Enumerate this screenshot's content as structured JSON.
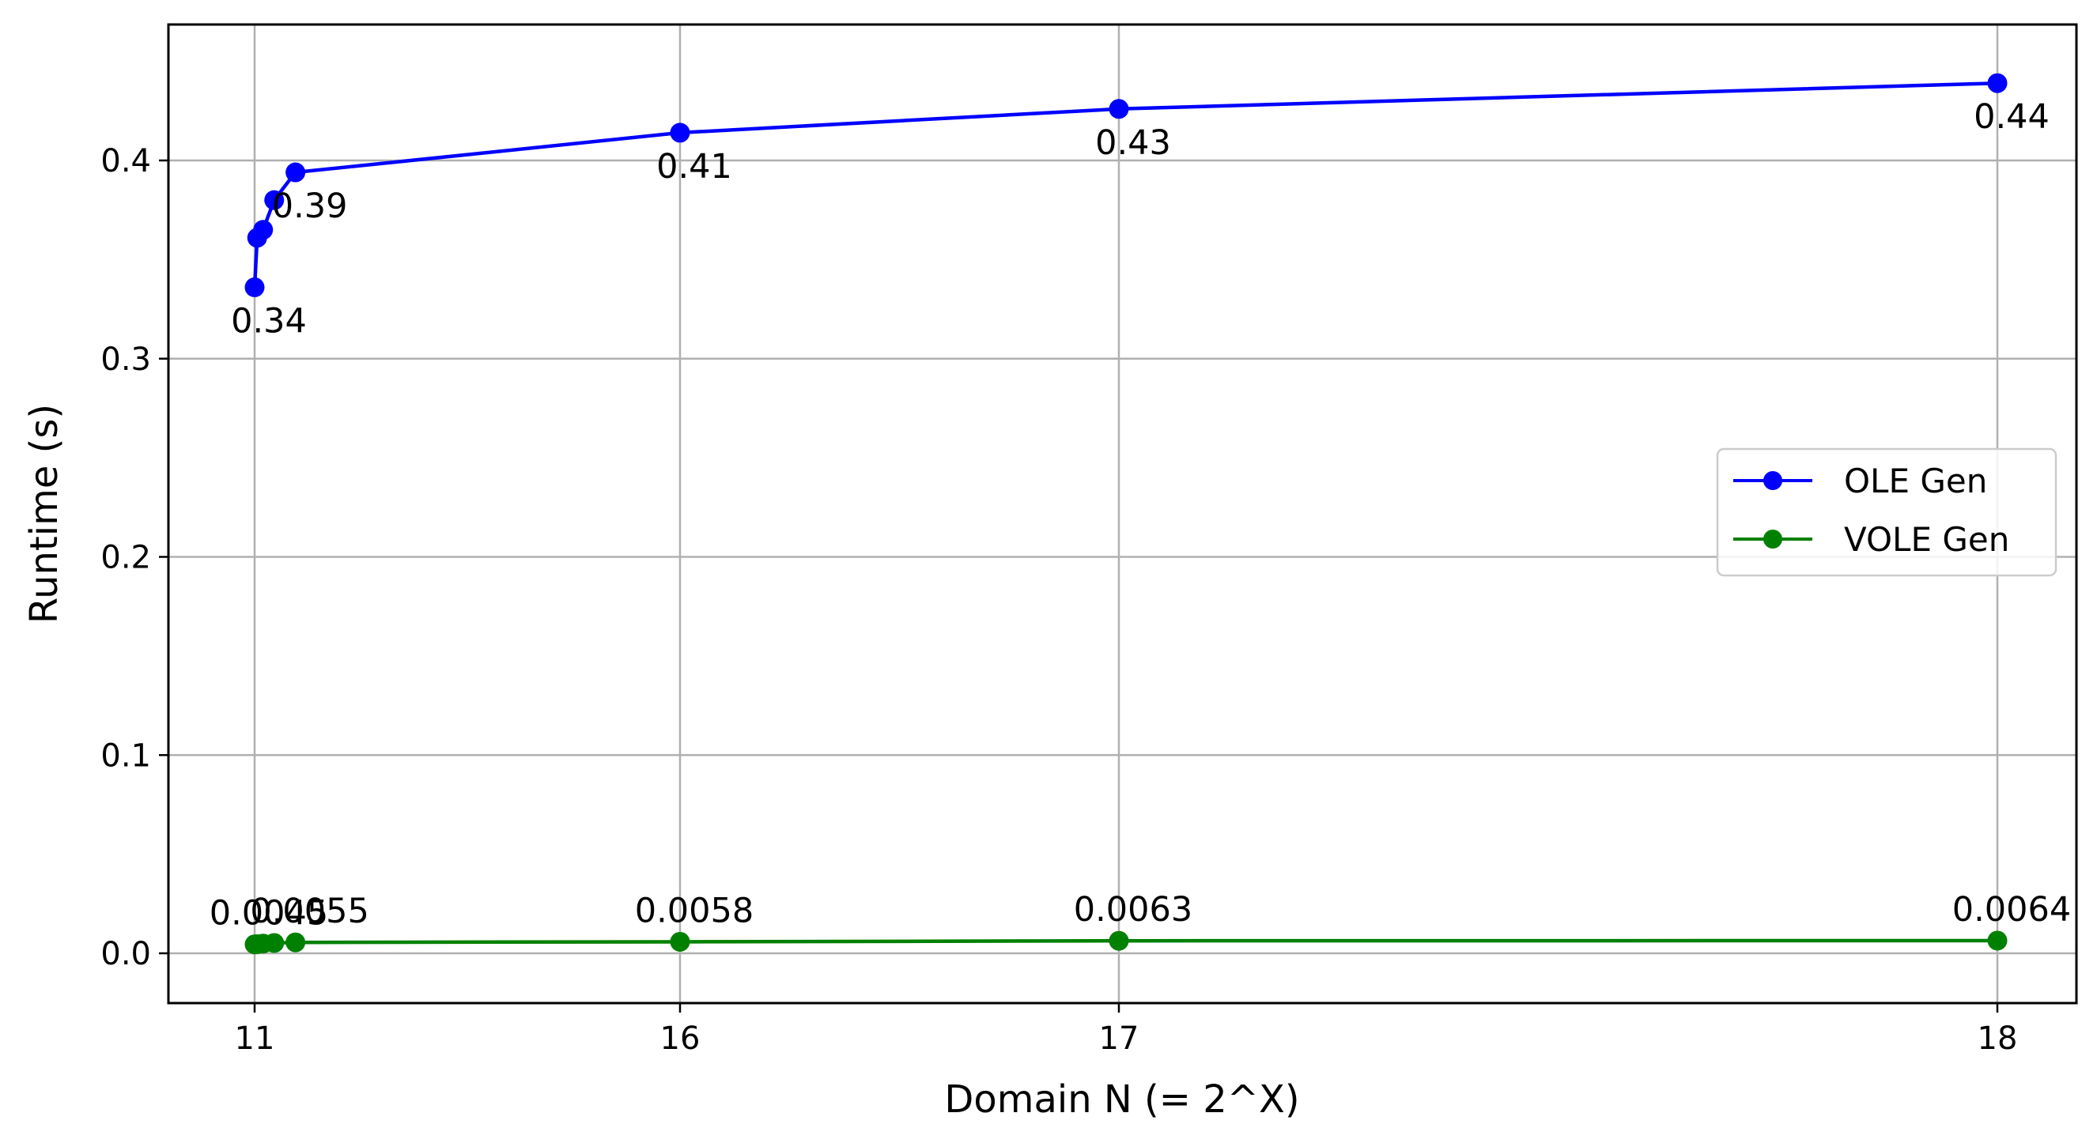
{
  "chart_data": {
    "type": "line",
    "xlabel": "Domain N (= 2^X)",
    "ylabel": "Runtime (s)",
    "x_ticks": [
      {
        "label": "11",
        "value": 11
      },
      {
        "label": "16",
        "value": 16
      },
      {
        "label": "17",
        "value": 17
      },
      {
        "label": "18",
        "value": 18
      }
    ],
    "y_ticks": [
      {
        "label": "0.0",
        "value": 0.0
      },
      {
        "label": "0.1",
        "value": 0.1
      },
      {
        "label": "0.2",
        "value": 0.2
      },
      {
        "label": "0.3",
        "value": 0.3
      },
      {
        "label": "0.4",
        "value": 0.4
      }
    ],
    "x_axis_scale": "nonuniform-categorical: 11 -> 16 spans half the axis; 16, 17, 18 spaced unevenly as printed",
    "ylim": [
      -0.025,
      0.47
    ],
    "grid": true,
    "legend_position": "center-right",
    "series": [
      {
        "name": "OLE Gen",
        "color": "#0000ff",
        "points": [
          {
            "x": 11.0,
            "y": 0.336,
            "label": "0.34"
          },
          {
            "x": 11.03,
            "y": 0.361,
            "label": ""
          },
          {
            "x": 11.1,
            "y": 0.365,
            "label": ""
          },
          {
            "x": 11.23,
            "y": 0.38,
            "label": ""
          },
          {
            "x": 11.48,
            "y": 0.394,
            "label": "0.39"
          },
          {
            "x": 16.0,
            "y": 0.414,
            "label": "0.41"
          },
          {
            "x": 17.0,
            "y": 0.426,
            "label": "0.43"
          },
          {
            "x": 18.0,
            "y": 0.439,
            "label": "0.44"
          }
        ]
      },
      {
        "name": "VOLE Gen",
        "color": "#008000",
        "points": [
          {
            "x": 11.0,
            "y": 0.0045,
            "label": "0.0045"
          },
          {
            "x": 11.03,
            "y": 0.0046,
            "label": ""
          },
          {
            "x": 11.1,
            "y": 0.0049,
            "label": ""
          },
          {
            "x": 11.23,
            "y": 0.0052,
            "label": ""
          },
          {
            "x": 11.48,
            "y": 0.0055,
            "label": "0.0055"
          },
          {
            "x": 16.0,
            "y": 0.0058,
            "label": "0.0058"
          },
          {
            "x": 17.0,
            "y": 0.0063,
            "label": "0.0063"
          },
          {
            "x": 18.0,
            "y": 0.0064,
            "label": "0.0064"
          }
        ]
      }
    ]
  }
}
